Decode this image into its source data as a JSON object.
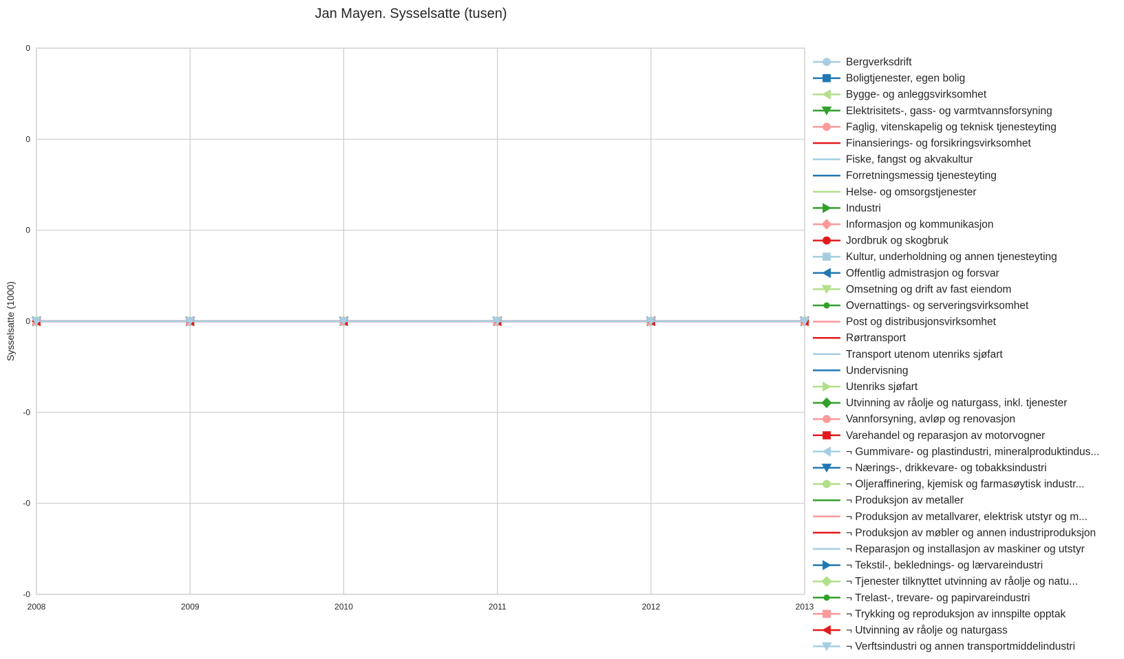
{
  "chart_data": {
    "type": "line",
    "title": "Jan Mayen. Sysselsatte (tusen)",
    "xlabel": "",
    "ylabel": "Sysselsatte (1000)",
    "x": [
      2008,
      2009,
      2010,
      2011,
      2012,
      2013
    ],
    "xlim": [
      2008,
      2013
    ],
    "ylim": [
      -0.06,
      0.06
    ],
    "x_tick_labels": [
      "2008",
      "2009",
      "2010",
      "2011",
      "2012",
      "2013"
    ],
    "y_tick_values": [
      0.06,
      0.04,
      0.02,
      0.0,
      -0.02,
      -0.04,
      -0.06
    ],
    "y_tick_labels": [
      "0",
      "0",
      "0",
      "0",
      "-0",
      "-0",
      "-0"
    ],
    "grid": true,
    "legend_placement": "outside-right",
    "series": [
      {
        "name": "Bergverksdrift",
        "color": "#a6cee3",
        "marker": "circle",
        "values": [
          0,
          0,
          0,
          0,
          0,
          0
        ]
      },
      {
        "name": "Boligtjenester, egen bolig",
        "color": "#1f78b4",
        "marker": "square",
        "values": [
          0,
          0,
          0,
          0,
          0,
          0
        ]
      },
      {
        "name": "Bygge- og anleggsvirksomhet",
        "color": "#b2df8a",
        "marker": "triangle-left",
        "values": [
          0,
          0,
          0,
          0,
          0,
          0
        ]
      },
      {
        "name": "Elektrisitets-, gass- og varmtvannsforsyning",
        "color": "#33a02c",
        "marker": "triangle-down",
        "values": [
          0,
          0,
          0,
          0,
          0,
          0
        ]
      },
      {
        "name": "Faglig, vitenskapelig og teknisk tjenesteyting",
        "color": "#fb9a99",
        "marker": "circle",
        "values": [
          0,
          0,
          0,
          0,
          0,
          0
        ]
      },
      {
        "name": "Finansierings- og forsikringsvirksomhet",
        "color": "#e31a1c",
        "marker": "none",
        "values": [
          0,
          0,
          0,
          0,
          0,
          0
        ]
      },
      {
        "name": "Fiske, fangst og akvakultur",
        "color": "#a6cee3",
        "marker": "none",
        "values": [
          0,
          0,
          0,
          0,
          0,
          0
        ]
      },
      {
        "name": "Forretningsmessig tjenesteyting",
        "color": "#1f78b4",
        "marker": "none",
        "values": [
          0,
          0,
          0,
          0,
          0,
          0
        ]
      },
      {
        "name": "Helse- og omsorgstjenester",
        "color": "#b2df8a",
        "marker": "none",
        "values": [
          0,
          0,
          0,
          0,
          0,
          0
        ]
      },
      {
        "name": "Industri",
        "color": "#33a02c",
        "marker": "triangle-right",
        "values": [
          0,
          0,
          0,
          0,
          0,
          0
        ]
      },
      {
        "name": "Informasjon og kommunikasjon",
        "color": "#fb9a99",
        "marker": "diamond",
        "values": [
          0,
          0,
          0,
          0,
          0,
          0
        ]
      },
      {
        "name": "Jordbruk og skogbruk",
        "color": "#e31a1c",
        "marker": "circle",
        "values": [
          0,
          0,
          0,
          0,
          0,
          0
        ]
      },
      {
        "name": "Kultur, underholdning og annen tjenesteyting",
        "color": "#a6cee3",
        "marker": "square",
        "values": [
          0,
          0,
          0,
          0,
          0,
          0
        ]
      },
      {
        "name": "Offentlig admistrasjon og forsvar",
        "color": "#1f78b4",
        "marker": "triangle-left",
        "values": [
          0,
          0,
          0,
          0,
          0,
          0
        ]
      },
      {
        "name": "Omsetning og drift av fast eiendom",
        "color": "#b2df8a",
        "marker": "triangle-down",
        "values": [
          0,
          0,
          0,
          0,
          0,
          0
        ]
      },
      {
        "name": "Overnattings- og serveringsvirksomhet",
        "color": "#33a02c",
        "marker": "circle-small",
        "values": [
          0,
          0,
          0,
          0,
          0,
          0
        ]
      },
      {
        "name": "Post og distribusjonsvirksomhet",
        "color": "#fb9a99",
        "marker": "none",
        "values": [
          0,
          0,
          0,
          0,
          0,
          0
        ]
      },
      {
        "name": "Rørtransport",
        "color": "#e31a1c",
        "marker": "none",
        "values": [
          0,
          0,
          0,
          0,
          0,
          0
        ]
      },
      {
        "name": "Transport utenom utenriks sjøfart",
        "color": "#a6cee3",
        "marker": "none",
        "values": [
          0,
          0,
          0,
          0,
          0,
          0
        ]
      },
      {
        "name": "Undervisning",
        "color": "#1f78b4",
        "marker": "none",
        "values": [
          0,
          0,
          0,
          0,
          0,
          0
        ]
      },
      {
        "name": "Utenriks sjøfart",
        "color": "#b2df8a",
        "marker": "triangle-right",
        "values": [
          0,
          0,
          0,
          0,
          0,
          0
        ]
      },
      {
        "name": "Utvinning av råolje og naturgass, inkl. tjenester",
        "color": "#33a02c",
        "marker": "diamond",
        "values": [
          0,
          0,
          0,
          0,
          0,
          0
        ]
      },
      {
        "name": "Vannforsyning, avløp og renovasjon",
        "color": "#fb9a99",
        "marker": "circle",
        "values": [
          0,
          0,
          0,
          0,
          0,
          0
        ]
      },
      {
        "name": "Varehandel og reparasjon av motorvogner",
        "color": "#e31a1c",
        "marker": "square",
        "values": [
          0,
          0,
          0,
          0,
          0,
          0
        ]
      },
      {
        "name": "¬ Gummivare- og plastindustri, mineralproduktindus...",
        "color": "#a6cee3",
        "marker": "triangle-left",
        "values": [
          0,
          0,
          0,
          0,
          0,
          0
        ]
      },
      {
        "name": "¬ Nærings-, drikkevare- og tobakksindustri",
        "color": "#1f78b4",
        "marker": "triangle-down",
        "values": [
          0,
          0,
          0,
          0,
          0,
          0
        ]
      },
      {
        "name": "¬ Oljeraffinering, kjemisk og farmasøytisk industr...",
        "color": "#b2df8a",
        "marker": "circle",
        "values": [
          0,
          0,
          0,
          0,
          0,
          0
        ]
      },
      {
        "name": "¬ Produksjon av metaller",
        "color": "#33a02c",
        "marker": "none",
        "values": [
          0,
          0,
          0,
          0,
          0,
          0
        ]
      },
      {
        "name": "¬ Produksjon av metallvarer, elektrisk utstyr og m...",
        "color": "#fb9a99",
        "marker": "none",
        "values": [
          0,
          0,
          0,
          0,
          0,
          0
        ]
      },
      {
        "name": "¬ Produksjon av møbler og annen industriproduksjon",
        "color": "#e31a1c",
        "marker": "none",
        "values": [
          0,
          0,
          0,
          0,
          0,
          0
        ]
      },
      {
        "name": "¬ Reparasjon og installasjon av maskiner og utstyr",
        "color": "#a6cee3",
        "marker": "none",
        "values": [
          0,
          0,
          0,
          0,
          0,
          0
        ]
      },
      {
        "name": "¬ Tekstil-, beklednings- og lærvareindustri",
        "color": "#1f78b4",
        "marker": "triangle-right",
        "values": [
          0,
          0,
          0,
          0,
          0,
          0
        ]
      },
      {
        "name": "¬ Tjenester tilknyttet utvinning av råolje og natu...",
        "color": "#b2df8a",
        "marker": "diamond",
        "values": [
          0,
          0,
          0,
          0,
          0,
          0
        ]
      },
      {
        "name": "¬ Trelast-, trevare- og papirvareindustri",
        "color": "#33a02c",
        "marker": "circle-small",
        "values": [
          0,
          0,
          0,
          0,
          0,
          0
        ]
      },
      {
        "name": "¬ Trykking og reproduksjon av innspilte opptak",
        "color": "#fb9a99",
        "marker": "square",
        "values": [
          0,
          0,
          0,
          0,
          0,
          0
        ]
      },
      {
        "name": "¬ Utvinning av råolje og naturgass",
        "color": "#e31a1c",
        "marker": "triangle-left",
        "values": [
          0,
          0,
          0,
          0,
          0,
          0
        ]
      },
      {
        "name": "¬ Verftsindustri og annen transportmiddelindustri",
        "color": "#a6cee3",
        "marker": "triangle-down",
        "values": [
          0,
          0,
          0,
          0,
          0,
          0
        ]
      }
    ]
  }
}
